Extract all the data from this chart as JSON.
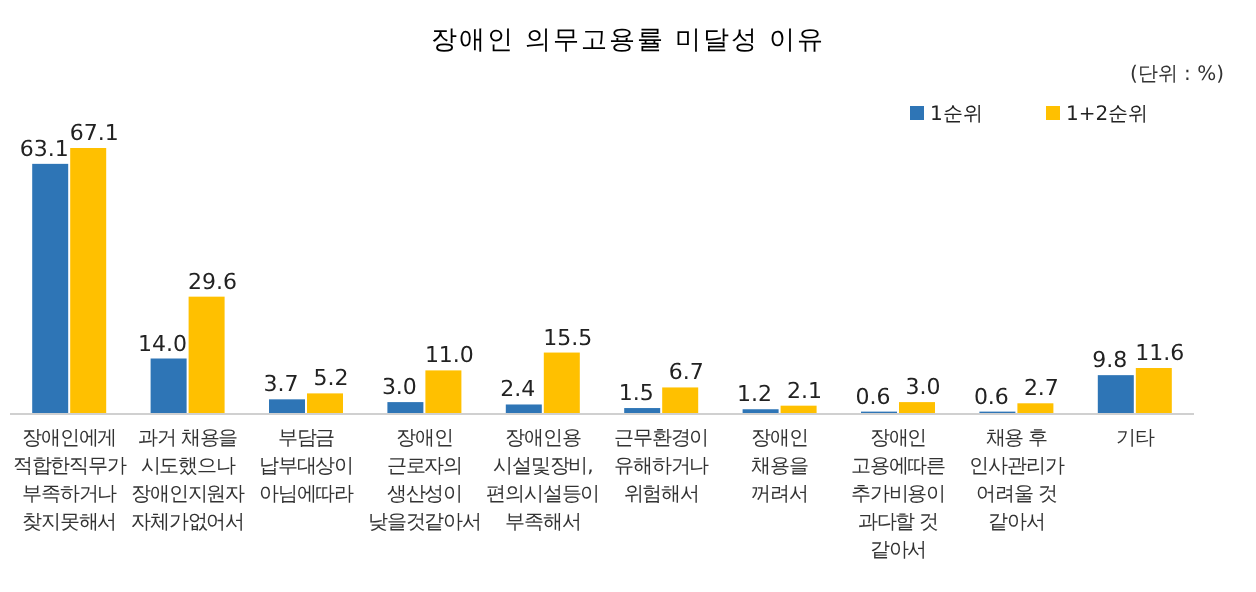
{
  "chart_data": {
    "type": "bar",
    "title": "장애인 의무고용률 미달성 이유",
    "annotations": [
      "(단위 : %)"
    ],
    "categories": [
      "장애인에게\n적합한직무가\n부족하거나\n찾지못해서",
      "과거 채용을\n시도했으나\n장애인지원자\n자체가없어서",
      "부담금\n납부대상이\n아님에따라",
      "장애인\n근로자의\n생산성이\n낮을것같아서",
      "장애인용\n시설및장비,\n편의시설등이\n부족해서",
      "근무환경이\n유해하거나\n위험해서",
      "장애인\n채용을\n꺼려서",
      "장애인\n고용에따른\n추가비용이\n과다할 것\n같아서",
      "채용 후\n인사관리가\n어려울 것\n같아서",
      "기타"
    ],
    "series": [
      {
        "name": "1순위",
        "color": "#2e75b6",
        "values": [
          63.1,
          14.0,
          3.7,
          3.0,
          2.4,
          1.5,
          1.2,
          0.6,
          0.6,
          9.8
        ],
        "value_labels": [
          "63.1",
          "14.0",
          "3.7",
          "3.0",
          "2.4",
          "1.5",
          "1.2",
          "0.6",
          "0.6",
          "9.8"
        ]
      },
      {
        "name": "1+2순위",
        "color": "#ffc000",
        "values": [
          67.1,
          29.6,
          5.2,
          11.0,
          15.5,
          6.7,
          2.1,
          3.0,
          2.7,
          11.6
        ],
        "value_labels": [
          "67.1",
          "29.6",
          "5.2",
          "11.0",
          "15.5",
          "6.7",
          "2.1",
          "3.0",
          "2.7",
          "11.6"
        ]
      }
    ],
    "legend": "top right"
  }
}
